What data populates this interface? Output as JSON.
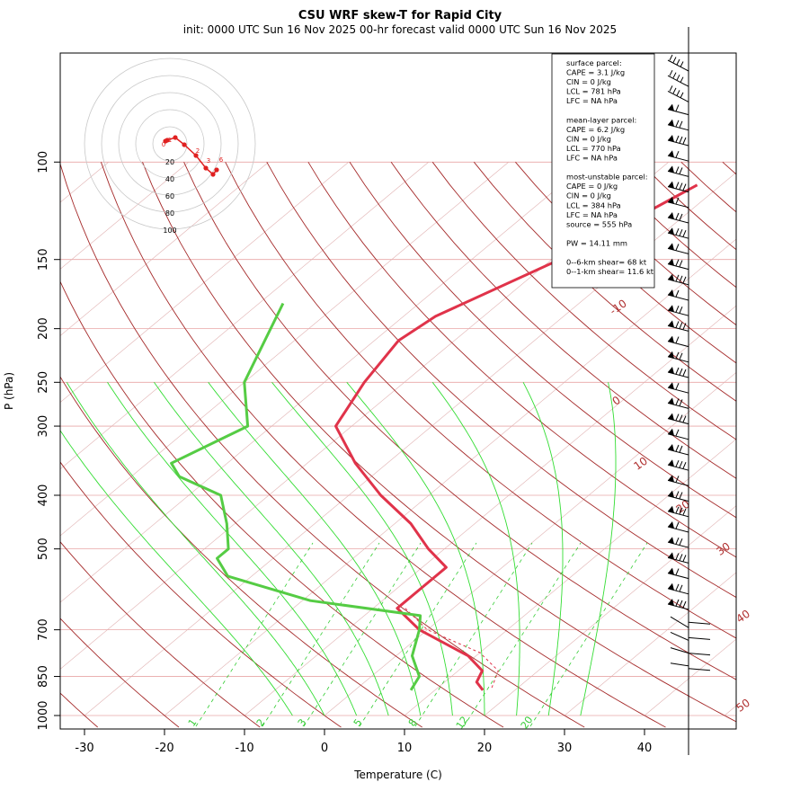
{
  "title": "CSU WRF skew-T for Rapid City",
  "subtitle": "init: 0000 UTC Sun 16 Nov 2025    00-hr forecast valid 0000 UTC Sun 16 Nov 2025",
  "xlabel": "Temperature (C)",
  "ylabel": "P (hPa)",
  "info_lines": [
    "surface parcel:",
    "CAPE = 3.1 J/kg",
    "CIN = 0 J/kg",
    "LCL = 781 hPa",
    "LFC = NA hPa",
    "",
    "mean-layer parcel:",
    "CAPE = 6.2 J/kg",
    "CIN = 0 J/kg",
    "LCL = 770 hPa",
    "LFC = NA hPa",
    "",
    "most-unstable parcel:",
    "CAPE = 0 J/kg",
    "CIN = 0 J/kg",
    "LCL = 384 hPa",
    "LFC = NA hPa",
    "source = 555 hPa",
    "",
    "PW =  14.11 mm",
    "",
    "0--6-km shear= 68 kt",
    "0--1-km shear= 11.6 kt"
  ],
  "colors": {
    "temperature": "#e0334a",
    "dewpoint": "#55cc44",
    "dry_adiabat": "#a52a2a",
    "mixing_ratio": "#33cc33",
    "isobar": "#e8a6a6",
    "skewed_isotherm": "#e0b0b0",
    "moist_adiabat": "#33dd33"
  },
  "chart_data": {
    "type": "line",
    "title": "CSU WRF skew-T for Rapid City",
    "xlabel": "Temperature (C)",
    "ylabel": "P (hPa)",
    "x_ticks": [
      -30,
      -20,
      -10,
      0,
      10,
      20,
      30,
      40
    ],
    "pressure_ticks": [
      100,
      150,
      200,
      250,
      300,
      400,
      500,
      700,
      850,
      1000
    ],
    "isotherm_labels": [
      -10,
      0,
      10,
      20,
      30,
      40,
      50
    ],
    "mixing_ratio_labels": [
      "1",
      "2",
      "3",
      "5",
      "8",
      "12",
      "20"
    ],
    "y_scale": "log",
    "series": [
      {
        "name": "",
        "kind": "temperature",
        "points": [
          [
            110,
            -33
          ],
          [
            150,
            -39
          ],
          [
            190,
            -46
          ],
          [
            210,
            -47
          ],
          [
            250,
            -45
          ],
          [
            300,
            -42
          ],
          [
            350,
            -34
          ],
          [
            400,
            -26
          ],
          [
            450,
            -18
          ],
          [
            500,
            -12
          ],
          [
            540,
            -7
          ],
          [
            590,
            -7
          ],
          [
            640,
            -7
          ],
          [
            700,
            -1
          ],
          [
            780,
            9
          ],
          [
            830,
            13
          ],
          [
            870,
            14
          ],
          [
            900,
            16
          ]
        ]
      },
      {
        "name": "",
        "kind": "parcel",
        "points": [
          [
            640,
            -6
          ],
          [
            700,
            0
          ],
          [
            770,
            10
          ],
          [
            830,
            15
          ],
          [
            900,
            17
          ]
        ]
      },
      {
        "name": "",
        "kind": "dewpoint",
        "points": [
          [
            180,
            -67
          ],
          [
            250,
            -60
          ],
          [
            300,
            -53
          ],
          [
            350,
            -57
          ],
          [
            370,
            -54
          ],
          [
            400,
            -46
          ],
          [
            450,
            -41
          ],
          [
            500,
            -37
          ],
          [
            520,
            -37
          ],
          [
            560,
            -33
          ],
          [
            620,
            -19
          ],
          [
            660,
            -3
          ],
          [
            700,
            -1
          ],
          [
            780,
            2
          ],
          [
            850,
            6
          ],
          [
            900,
            7
          ]
        ]
      }
    ],
    "hodograph": {
      "ring_labels": [
        20,
        40,
        60,
        80,
        100
      ],
      "point_labels": [
        "0",
        "1",
        "2",
        "3",
        "6"
      ]
    },
    "wind_barbs": {
      "count": 40,
      "note": "wind profile barbs at right edge"
    }
  }
}
